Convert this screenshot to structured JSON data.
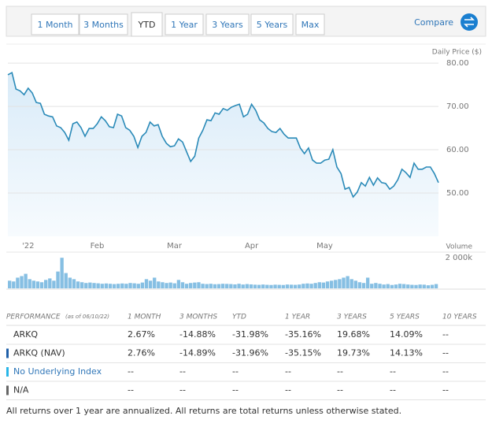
{
  "tabs": [
    "1 Month",
    "3 Months",
    "YTD",
    "1 Year",
    "3 Years",
    "5 Years",
    "Max"
  ],
  "compare": "Compare",
  "chart_data": [
    {
      "type": "line",
      "ylabel": "Daily Price ($)",
      "color": "#2a8ab8",
      "values": [
        77.3,
        77.8,
        74.0,
        73.6,
        72.7,
        74.2,
        73.1,
        70.9,
        70.7,
        68.2,
        67.8,
        67.6,
        65.5,
        65.1,
        64.0,
        62.2,
        66.0,
        66.4,
        65.1,
        63.1,
        64.9,
        64.9,
        66.0,
        67.6,
        66.7,
        65.3,
        65.1,
        68.2,
        67.8,
        65.1,
        64.5,
        63.1,
        60.5,
        63.1,
        64.0,
        66.4,
        65.5,
        65.8,
        63.1,
        61.5,
        60.7,
        60.9,
        62.5,
        61.8,
        59.5,
        57.3,
        58.5,
        62.7,
        64.5,
        66.9,
        66.7,
        68.5,
        68.2,
        69.5,
        69.1,
        69.8,
        70.2,
        70.5,
        67.6,
        68.2,
        70.5,
        69.1,
        66.9,
        66.2,
        64.9,
        64.2,
        64.0,
        64.9,
        63.6,
        62.7,
        62.7,
        62.7,
        60.4,
        59.1,
        60.4,
        57.6,
        56.9,
        56.9,
        57.6,
        57.8,
        60.0,
        56.0,
        54.5,
        50.9,
        51.3,
        49.1,
        50.2,
        52.4,
        51.6,
        53.6,
        51.8,
        53.5,
        52.4,
        52.2,
        50.9,
        51.6,
        53.1,
        55.5,
        54.7,
        53.6,
        56.9,
        55.5,
        55.5,
        56.0,
        56.0,
        54.5,
        52.4
      ],
      "xlim": [
        0,
        106
      ],
      "ylim": [
        40,
        82.2
      ],
      "xticks": [
        {
          "value": 5,
          "label": "'22"
        },
        {
          "value": 22,
          "label": "Feb"
        },
        {
          "value": 41,
          "label": "Mar"
        },
        {
          "value": 60,
          "label": "Apr"
        },
        {
          "value": 78,
          "label": "May"
        }
      ],
      "yticks": [
        {
          "value": 50,
          "label": "50.00"
        },
        {
          "value": 60,
          "label": "60.00"
        },
        {
          "value": 70,
          "label": "70.00"
        },
        {
          "value": 80,
          "label": "80.00"
        }
      ],
      "grid": true
    },
    {
      "type": "bar",
      "ylabel": "Volume",
      "color": "#86bfe3",
      "values": [
        500,
        450,
        700,
        800,
        950,
        600,
        500,
        450,
        400,
        550,
        650,
        500,
        1100,
        2000,
        1000,
        700,
        600,
        450,
        400,
        350,
        380,
        350,
        330,
        300,
        320,
        300,
        280,
        300,
        320,
        300,
        350,
        330,
        300,
        380,
        600,
        500,
        700,
        450,
        400,
        350,
        380,
        330,
        550,
        400,
        300,
        350,
        380,
        400,
        300,
        280,
        300,
        270,
        280,
        300,
        290,
        280,
        260,
        300,
        250,
        280,
        260,
        240,
        230,
        250,
        230,
        220,
        240,
        230,
        220,
        250,
        240,
        230,
        250,
        300,
        320,
        300,
        350,
        400,
        380,
        450,
        500,
        550,
        600,
        700,
        800,
        600,
        500,
        400,
        350,
        700,
        300,
        350,
        300,
        250,
        280,
        220,
        250,
        300,
        280,
        250,
        230,
        220,
        250,
        240,
        200,
        230,
        280
      ],
      "ylim": [
        0,
        2370
      ],
      "yticks": [
        {
          "value": 2000,
          "label": "2 000k"
        }
      ]
    }
  ],
  "performance": {
    "title": "PERFORMANCE",
    "note": "(as of 06/10/22)",
    "columns": [
      "1 MONTH",
      "3 MONTHS",
      "YTD",
      "1 YEAR",
      "3 YEARS",
      "5 YEARS",
      "10 YEARS"
    ],
    "rows": [
      {
        "name": "ARKQ",
        "values": [
          "2.67%",
          "-14.88%",
          "-31.98%",
          "-35.16%",
          "19.68%",
          "14.09%",
          "--"
        ]
      },
      {
        "name": "ARKQ (NAV)",
        "color": "#1f5fa8",
        "values": [
          "2.76%",
          "-14.89%",
          "-31.96%",
          "-35.15%",
          "19.73%",
          "14.13%",
          "--"
        ]
      },
      {
        "name": "No Underlying Index",
        "color": "#29b6e8",
        "values": [
          "--",
          "--",
          "--",
          "--",
          "--",
          "--",
          "--"
        ]
      },
      {
        "name": "N/A",
        "color": "#666666",
        "values": [
          "--",
          "--",
          "--",
          "--",
          "--",
          "--",
          "--"
        ]
      }
    ]
  },
  "footnote": "All returns over 1 year are annualized. All returns are total returns unless otherwise stated."
}
